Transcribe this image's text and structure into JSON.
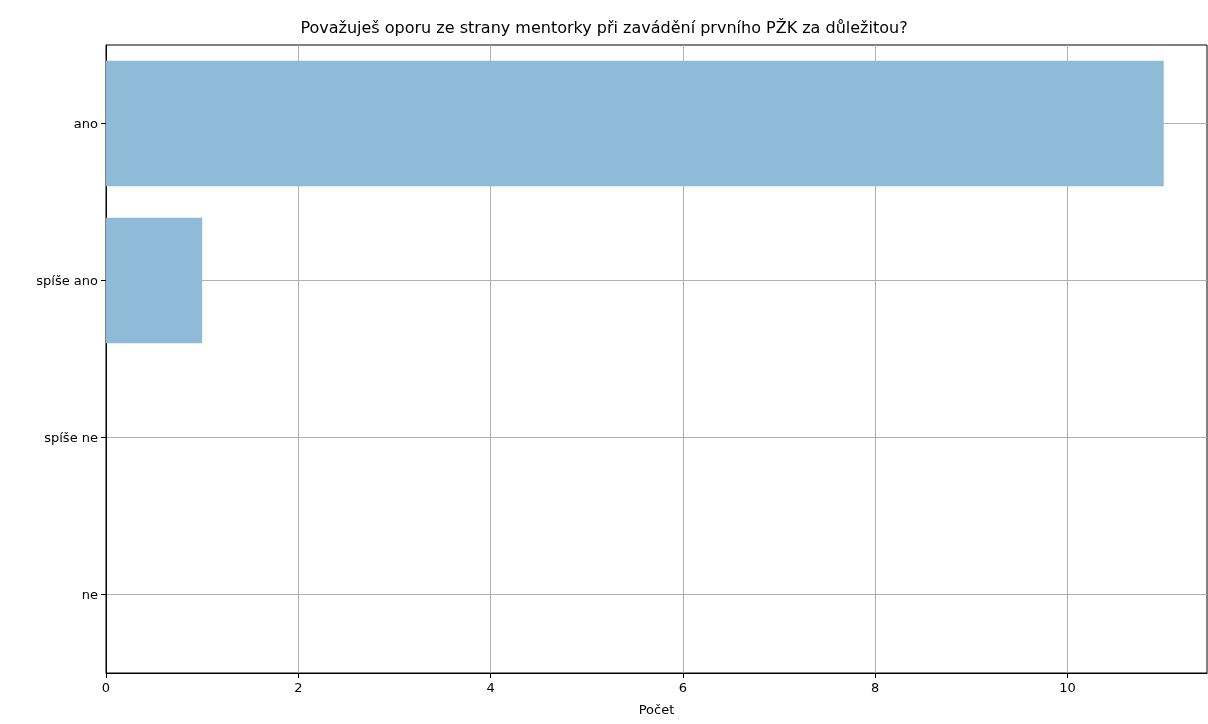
{
  "chart_data": {
    "type": "bar",
    "orientation": "horizontal",
    "title": "Považuješ oporu ze strany mentorky při zavádění prvního PŽK za důležitou?",
    "xlabel": "Počet",
    "categories": [
      "ano",
      "spíše ano",
      "spíše ne",
      "ne"
    ],
    "values": [
      11,
      1,
      0,
      0
    ],
    "color": "#8fbbd9",
    "xlim": [
      0,
      11.45
    ],
    "xticks": [
      0,
      2,
      4,
      6,
      8,
      10
    ],
    "grid": true
  }
}
